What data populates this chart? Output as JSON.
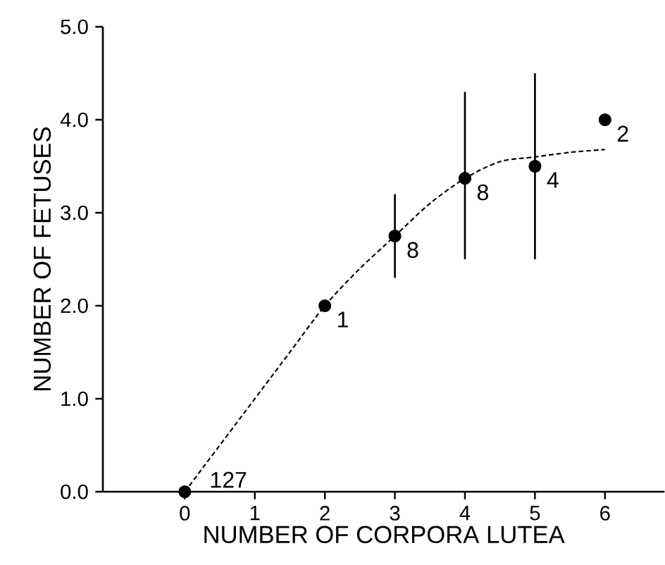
{
  "chart_data": {
    "type": "scatter",
    "xlabel": "NUMBER OF CORPORA LUTEA",
    "ylabel": "NUMBER OF FETUSES",
    "xlim": [
      -1.17,
      6.85
    ],
    "ylim": [
      0,
      5
    ],
    "xticks": [
      0,
      1,
      2,
      3,
      4,
      5,
      6
    ],
    "yticks": [
      {
        "value": 0,
        "label": "0.0"
      },
      {
        "value": 1,
        "label": "1.0"
      },
      {
        "value": 2,
        "label": "2.0"
      },
      {
        "value": 3,
        "label": "3.0"
      },
      {
        "value": 4,
        "label": "4.0"
      },
      {
        "value": 5,
        "label": "5.0"
      }
    ],
    "series": [
      {
        "type": "scatter",
        "color": "#000000",
        "marker": "circle",
        "x": [
          0,
          2,
          3,
          4,
          5,
          6
        ],
        "values": [
          0,
          2.0,
          2.75,
          3.37,
          3.5,
          4.0
        ],
        "errors": [
          null,
          null,
          [
            2.3,
            3.2
          ],
          [
            2.5,
            4.3
          ],
          [
            2.5,
            4.5
          ],
          null
        ]
      },
      {
        "type": "line",
        "color": "#000000",
        "marker": "none",
        "line_style": "dashed",
        "x": [
          0,
          1,
          1.5,
          2,
          2.5,
          3,
          3.5,
          4,
          4.5,
          5,
          5.5,
          6
        ],
        "values": [
          0,
          1.0,
          1.5,
          2.0,
          2.4,
          2.75,
          3.1,
          3.37,
          3.55,
          3.6,
          3.65,
          3.68
        ]
      }
    ],
    "annotations": [
      {
        "text": "127",
        "x": 0,
        "y": 0
      },
      {
        "text": "1",
        "x": 2,
        "y": 2.0
      },
      {
        "text": "8",
        "x": 3,
        "y": 2.75
      },
      {
        "text": "8",
        "x": 4,
        "y": 3.37
      },
      {
        "text": "4",
        "x": 5,
        "y": 3.5
      },
      {
        "text": "2",
        "x": 6,
        "y": 4.0
      }
    ]
  }
}
